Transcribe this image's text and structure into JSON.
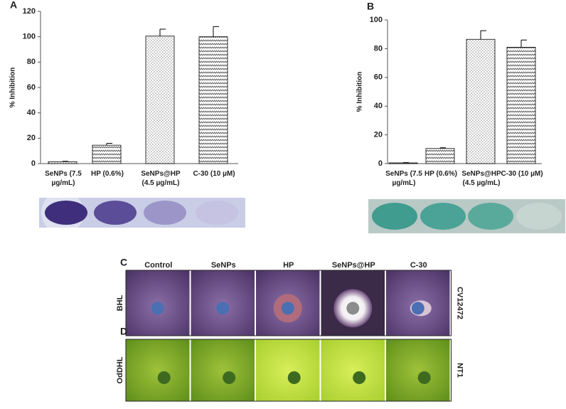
{
  "chart_data": [
    {
      "type": "bar",
      "title": "A",
      "ylabel": "% Inhibition",
      "categories": [
        "SeNPs (7.5 µg/mL)",
        "HP (0.6%)",
        "SeNPs@HP (4.5 µg/mL)",
        "C-30 (10 µM)"
      ],
      "values": [
        1.5,
        14.5,
        100.5,
        100
      ],
      "errors": [
        0.3,
        1.5,
        5.5,
        8
      ],
      "patterns": [
        "dots",
        "zigzag",
        "dots",
        "zigzag"
      ],
      "color": "#000000",
      "ylim": [
        0,
        120
      ],
      "yticks": [
        0,
        20,
        40,
        60,
        80,
        100,
        120
      ]
    },
    {
      "type": "bar",
      "title": "B",
      "ylabel": "% Inhibition",
      "categories": [
        "SeNPs (7.5 µg/mL)",
        "HP (0.6%)",
        "SeNPs@HP (4.5 µg/mL)",
        "C-30 (10 µM)"
      ],
      "values": [
        0.5,
        10.5,
        86.5,
        81
      ],
      "errors": [
        0.2,
        0.5,
        6,
        5
      ],
      "patterns": [
        "dots",
        "zigzag",
        "dots",
        "zigzag"
      ],
      "color": "#000000",
      "ylim": [
        0,
        100
      ],
      "yticks": [
        0,
        20,
        40,
        60,
        80,
        100
      ]
    }
  ],
  "photos": {
    "panels": [
      "C",
      "D"
    ],
    "columns": [
      "Control",
      "SeNPs",
      "HP",
      "SeNPs@HP",
      "C-30"
    ],
    "row_left": [
      "BHL",
      "OdDHL"
    ],
    "row_right": [
      "CV12472",
      "NT1"
    ]
  }
}
